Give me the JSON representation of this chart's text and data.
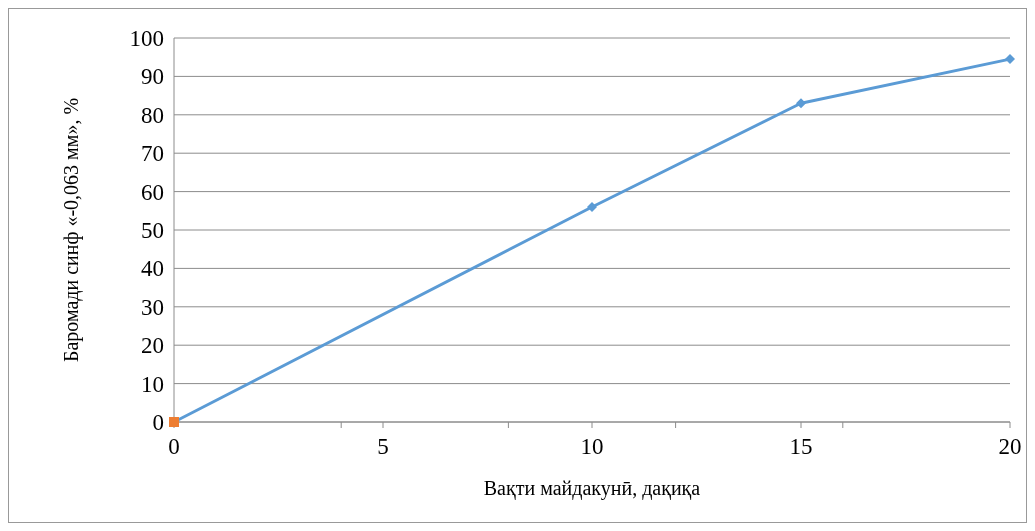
{
  "chart_data": {
    "type": "line",
    "xlabel": "Вақти майдакунӣ, дақиқа",
    "ylabel": "Баромади синф «-0,063 мм», %",
    "xlim": [
      0,
      20
    ],
    "xticks": [
      0,
      {
        "value": 4,
        "label": null
      },
      5,
      {
        "value": 8,
        "label": null
      },
      10,
      {
        "value": 12,
        "label": null
      },
      15,
      {
        "value": 16,
        "label": null
      },
      20
    ],
    "ylim": [
      0,
      100
    ],
    "yticks": [
      0,
      10,
      20,
      30,
      40,
      50,
      60,
      70,
      80,
      90,
      100
    ],
    "grid": "y",
    "series": [
      {
        "color": "#5b9bd5",
        "marker": "diamond",
        "x": [
          0,
          10,
          15,
          20
        ],
        "values": [
          0,
          56,
          83,
          94.5
        ]
      },
      {
        "type": "scatter",
        "color": "#ed7d31",
        "marker": "square",
        "x": [
          0
        ],
        "values": [
          0
        ]
      }
    ]
  }
}
